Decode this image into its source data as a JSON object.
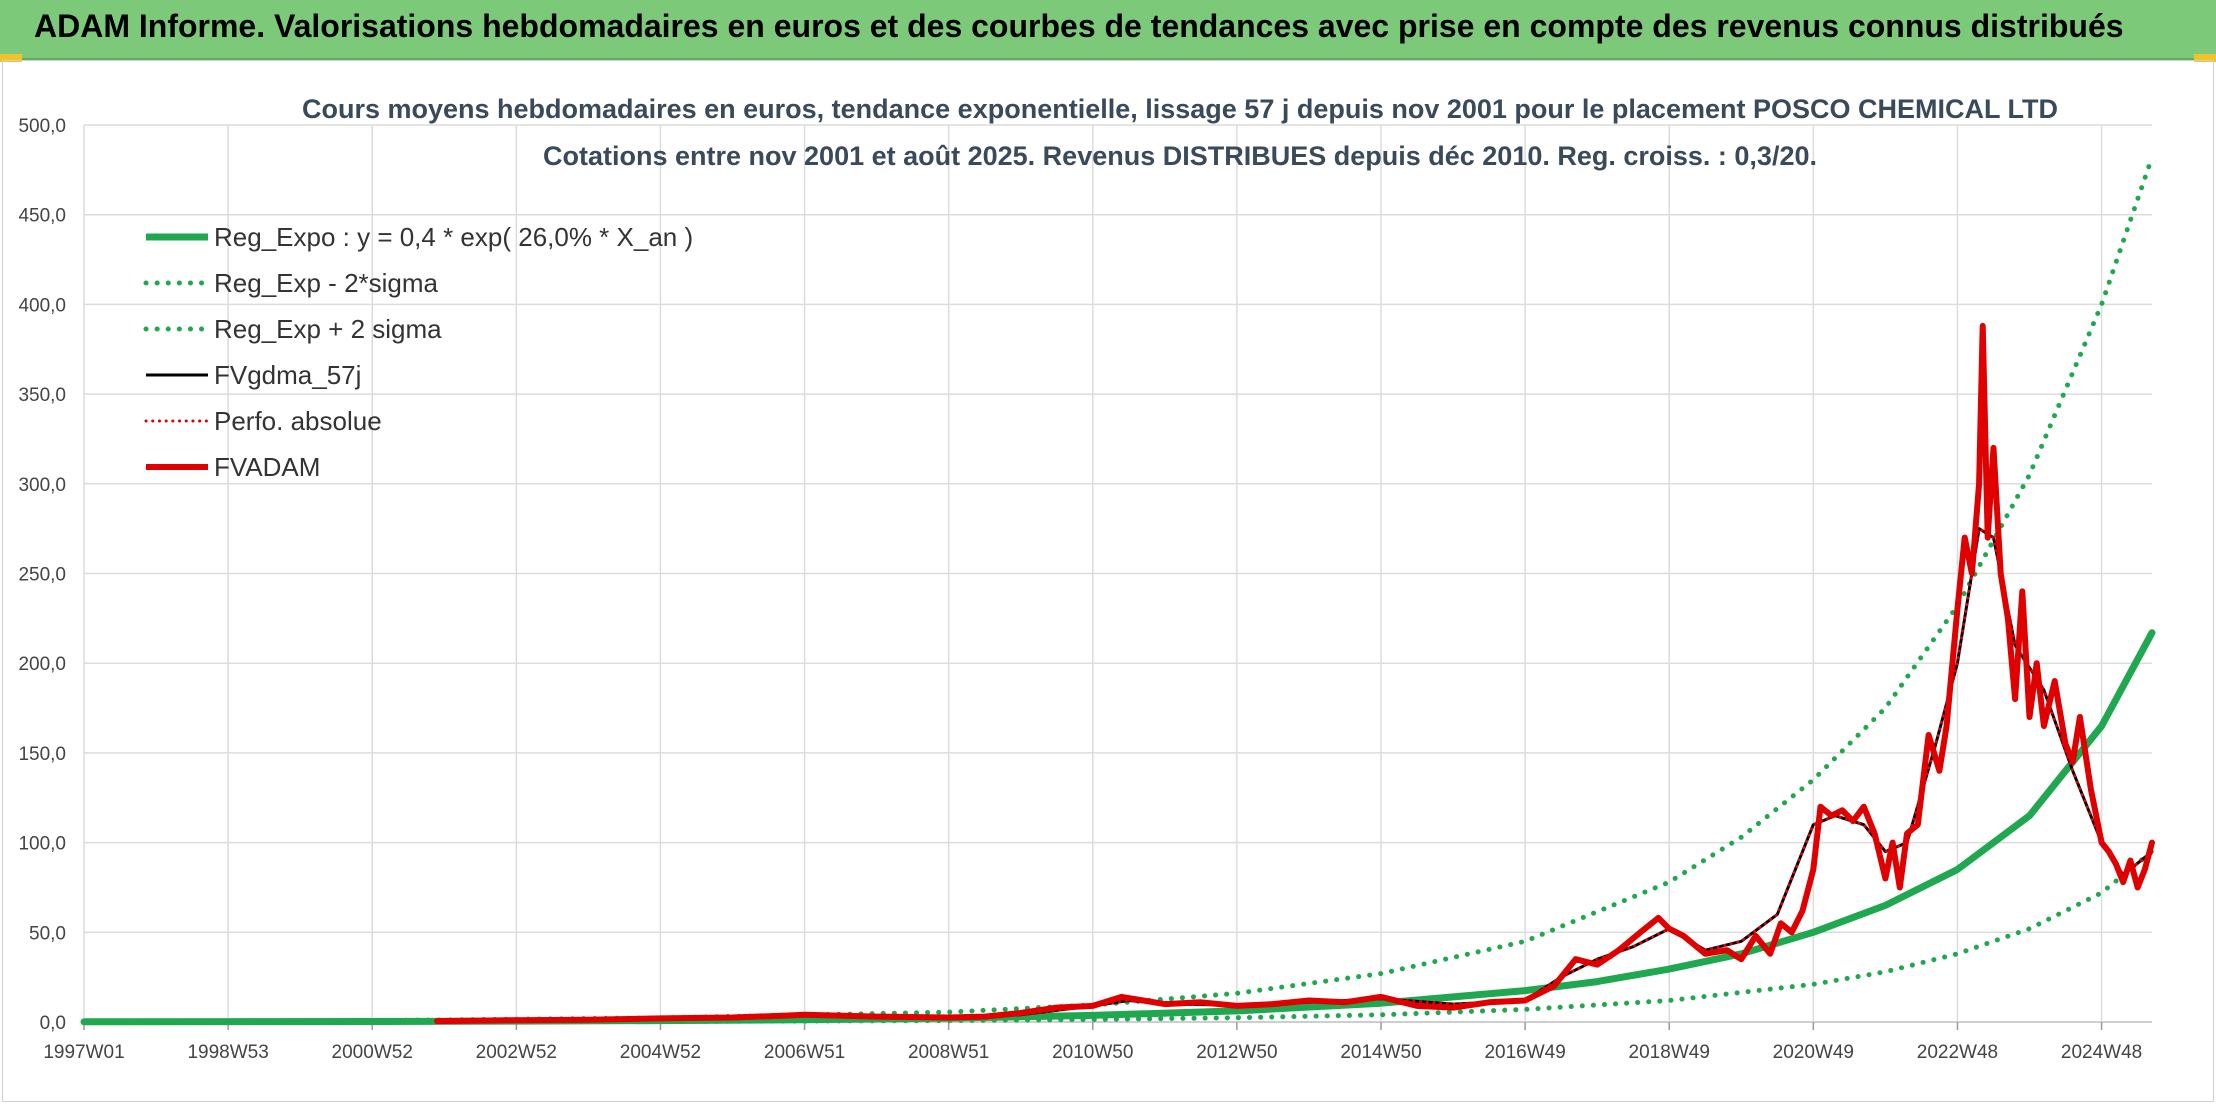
{
  "banner": {
    "title": "ADAM Informe. Valorisations hebdomadaires en euros et des courbes de tendances avec prise en compte des revenus connus distribués"
  },
  "chart_data": {
    "type": "line",
    "title_lines": [
      "Cours moyens hebdomadaires en euros, tendance exponentielle, lissage 57 j depuis nov 2001 pour le placement POSCO CHEMICAL LTD",
      "Cotations entre nov 2001 et août 2025. Revenus DISTRIBUES depuis déc 2010. Reg. croiss. : 0,3/20."
    ],
    "xlabel": "",
    "ylabel": "",
    "ylim": [
      0,
      500
    ],
    "xlim": [
      1997.0,
      2025.7
    ],
    "yticks": [
      "0,0",
      "50,0",
      "100,0",
      "150,0",
      "200,0",
      "250,0",
      "300,0",
      "350,0",
      "400,0",
      "450,0",
      "500,0"
    ],
    "xticks": [
      {
        "label": "1997W01",
        "x": 1997.0
      },
      {
        "label": "1998W53",
        "x": 1999.0
      },
      {
        "label": "2000W52",
        "x": 2001.0
      },
      {
        "label": "2002W52",
        "x": 2003.0
      },
      {
        "label": "2004W52",
        "x": 2005.0
      },
      {
        "label": "2006W51",
        "x": 2007.0
      },
      {
        "label": "2008W51",
        "x": 2009.0
      },
      {
        "label": "2010W50",
        "x": 2011.0
      },
      {
        "label": "2012W50",
        "x": 2013.0
      },
      {
        "label": "2014W50",
        "x": 2015.0
      },
      {
        "label": "2016W49",
        "x": 2017.0
      },
      {
        "label": "2018W49",
        "x": 2019.0
      },
      {
        "label": "2020W49",
        "x": 2021.0
      },
      {
        "label": "2022W48",
        "x": 2023.0
      },
      {
        "label": "2024W48",
        "x": 2025.0
      }
    ],
    "grid": true,
    "legend_position": "top-left",
    "series": [
      {
        "name": "Reg_Expo : y = 0,4 * exp( 26,0% *  X_an )",
        "color": "#1fa84f",
        "style": "solid",
        "width": 7,
        "x": [
          1997.0,
          2001.0,
          2003.0,
          2005.0,
          2007.0,
          2009.0,
          2011.0,
          2013.0,
          2015.0,
          2017.0,
          2018.0,
          2019.0,
          2020.0,
          2021.0,
          2022.0,
          2023.0,
          2024.0,
          2025.0,
          2025.7
        ],
        "y": [
          0.1,
          0.3,
          0.5,
          0.8,
          1.3,
          2.2,
          3.7,
          6.2,
          10.5,
          17.5,
          22.5,
          29.5,
          38.0,
          50.0,
          65.0,
          85.0,
          115.0,
          165.0,
          217.0
        ]
      },
      {
        "name": "Reg_Exp - 2*sigma",
        "color": "#1fa84f",
        "style": "dotted",
        "width": 5,
        "x": [
          1997.0,
          2001.0,
          2005.0,
          2009.0,
          2011.0,
          2013.0,
          2015.0,
          2017.0,
          2019.0,
          2021.0,
          2022.0,
          2023.0,
          2024.0,
          2025.0,
          2025.7
        ],
        "y": [
          0.0,
          0.1,
          0.3,
          0.8,
          1.4,
          2.4,
          4.0,
          7.0,
          12.0,
          21.0,
          28.0,
          38.0,
          52.0,
          72.0,
          95.0
        ]
      },
      {
        "name": "Reg_Exp + 2 sigma",
        "color": "#1fa84f",
        "style": "dotted",
        "width": 5,
        "x": [
          1997.0,
          2001.0,
          2005.0,
          2009.0,
          2011.0,
          2013.0,
          2015.0,
          2017.0,
          2019.0,
          2020.0,
          2021.0,
          2022.0,
          2023.0,
          2024.0,
          2025.0,
          2025.7
        ],
        "y": [
          0.2,
          0.8,
          2.3,
          5.5,
          9.5,
          16.0,
          27.0,
          45.0,
          78.0,
          103.0,
          135.0,
          175.0,
          232.0,
          305.0,
          400.0,
          482.0
        ]
      },
      {
        "name": "FVgdma_57j",
        "color": "#000000",
        "style": "solid",
        "width": 3,
        "x": [
          2001.9,
          2004.0,
          2006.0,
          2007.0,
          2008.0,
          2009.0,
          2010.0,
          2011.0,
          2011.5,
          2012.0,
          2013.0,
          2014.0,
          2015.0,
          2016.0,
          2017.0,
          2017.5,
          2018.0,
          2018.5,
          2019.0,
          2019.5,
          2020.0,
          2020.5,
          2021.0,
          2021.3,
          2021.7,
          2022.0,
          2022.3,
          2022.7,
          2023.0,
          2023.3,
          2023.5,
          2023.8,
          2024.2,
          2024.6,
          2025.0,
          2025.3,
          2025.7
        ],
        "y": [
          0.5,
          1.2,
          2.5,
          3.5,
          2.8,
          2.5,
          4.0,
          9.0,
          12.0,
          10.0,
          9.5,
          11.0,
          13.0,
          10.0,
          12.0,
          25.0,
          35.0,
          42.0,
          52.0,
          40.0,
          45.0,
          60.0,
          110.0,
          115.0,
          110.0,
          95.0,
          100.0,
          155.0,
          200.0,
          275.0,
          270.0,
          210.0,
          185.0,
          140.0,
          100.0,
          82.0,
          95.0
        ]
      },
      {
        "name": "Perfo. absolue",
        "color": "#e00000",
        "style": "dotted",
        "width": 3,
        "x": [
          2001.9,
          2004.0,
          2006.0,
          2007.0,
          2008.0,
          2009.0,
          2010.0,
          2011.0,
          2011.5,
          2012.0,
          2013.0,
          2014.0,
          2015.0,
          2016.0,
          2017.0,
          2017.5,
          2018.0,
          2018.5,
          2019.0,
          2019.5,
          2020.0,
          2020.5,
          2021.0,
          2021.3,
          2021.7,
          2022.0,
          2022.3,
          2022.7,
          2023.0,
          2023.3,
          2023.5,
          2023.8,
          2024.2,
          2024.6,
          2025.0,
          2025.3,
          2025.7
        ],
        "y": [
          0.5,
          1.2,
          2.5,
          3.5,
          2.8,
          2.5,
          4.0,
          9.0,
          12.0,
          10.0,
          9.5,
          11.0,
          13.0,
          10.0,
          12.0,
          25.0,
          35.0,
          42.0,
          52.0,
          40.0,
          45.0,
          60.0,
          110.0,
          115.0,
          110.0,
          95.0,
          100.0,
          155.0,
          200.0,
          275.0,
          270.0,
          210.0,
          185.0,
          140.0,
          100.0,
          82.0,
          95.0
        ]
      },
      {
        "name": "FVADAM",
        "color": "#e00000",
        "style": "solid",
        "width": 6,
        "x": [
          2001.9,
          2003.0,
          2004.0,
          2005.0,
          2006.0,
          2006.7,
          2007.0,
          2008.0,
          2009.0,
          2009.5,
          2010.0,
          2010.5,
          2011.0,
          2011.4,
          2011.7,
          2012.0,
          2012.5,
          2013.0,
          2013.5,
          2014.0,
          2014.5,
          2015.0,
          2015.5,
          2016.0,
          2016.5,
          2017.0,
          2017.4,
          2017.7,
          2018.0,
          2018.3,
          2018.6,
          2018.85,
          2019.0,
          2019.2,
          2019.5,
          2019.8,
          2020.0,
          2020.2,
          2020.4,
          2020.55,
          2020.7,
          2020.85,
          2021.0,
          2021.1,
          2021.25,
          2021.4,
          2021.55,
          2021.7,
          2021.85,
          2022.0,
          2022.1,
          2022.2,
          2022.3,
          2022.45,
          2022.6,
          2022.75,
          2022.85,
          2023.0,
          2023.1,
          2023.2,
          2023.3,
          2023.35,
          2023.42,
          2023.5,
          2023.6,
          2023.7,
          2023.8,
          2023.9,
          2024.0,
          2024.1,
          2024.2,
          2024.35,
          2024.5,
          2024.6,
          2024.7,
          2024.85,
          2025.0,
          2025.1,
          2025.2,
          2025.3,
          2025.4,
          2025.5,
          2025.6,
          2025.7
        ],
        "y": [
          0.5,
          1.0,
          1.3,
          2.0,
          2.5,
          3.5,
          4.0,
          3.0,
          2.5,
          3.0,
          5.0,
          8.0,
          9.0,
          14.0,
          12.0,
          10.0,
          11.0,
          9.0,
          10.0,
          12.0,
          11.0,
          14.0,
          9.0,
          8.0,
          11.0,
          12.0,
          20.0,
          35.0,
          32.0,
          40.0,
          50.0,
          58.0,
          52.0,
          48.0,
          38.0,
          40.0,
          35.0,
          48.0,
          38.0,
          55.0,
          50.0,
          62.0,
          85.0,
          120.0,
          115.0,
          118.0,
          112.0,
          120.0,
          105.0,
          80.0,
          100.0,
          75.0,
          105.0,
          110.0,
          160.0,
          140.0,
          165.0,
          230.0,
          270.0,
          250.0,
          300.0,
          388.0,
          270.0,
          320.0,
          250.0,
          225.0,
          180.0,
          240.0,
          170.0,
          200.0,
          165.0,
          190.0,
          155.0,
          145.0,
          170.0,
          130.0,
          100.0,
          95.0,
          88.0,
          78.0,
          90.0,
          75.0,
          85.0,
          100.0
        ]
      }
    ]
  }
}
